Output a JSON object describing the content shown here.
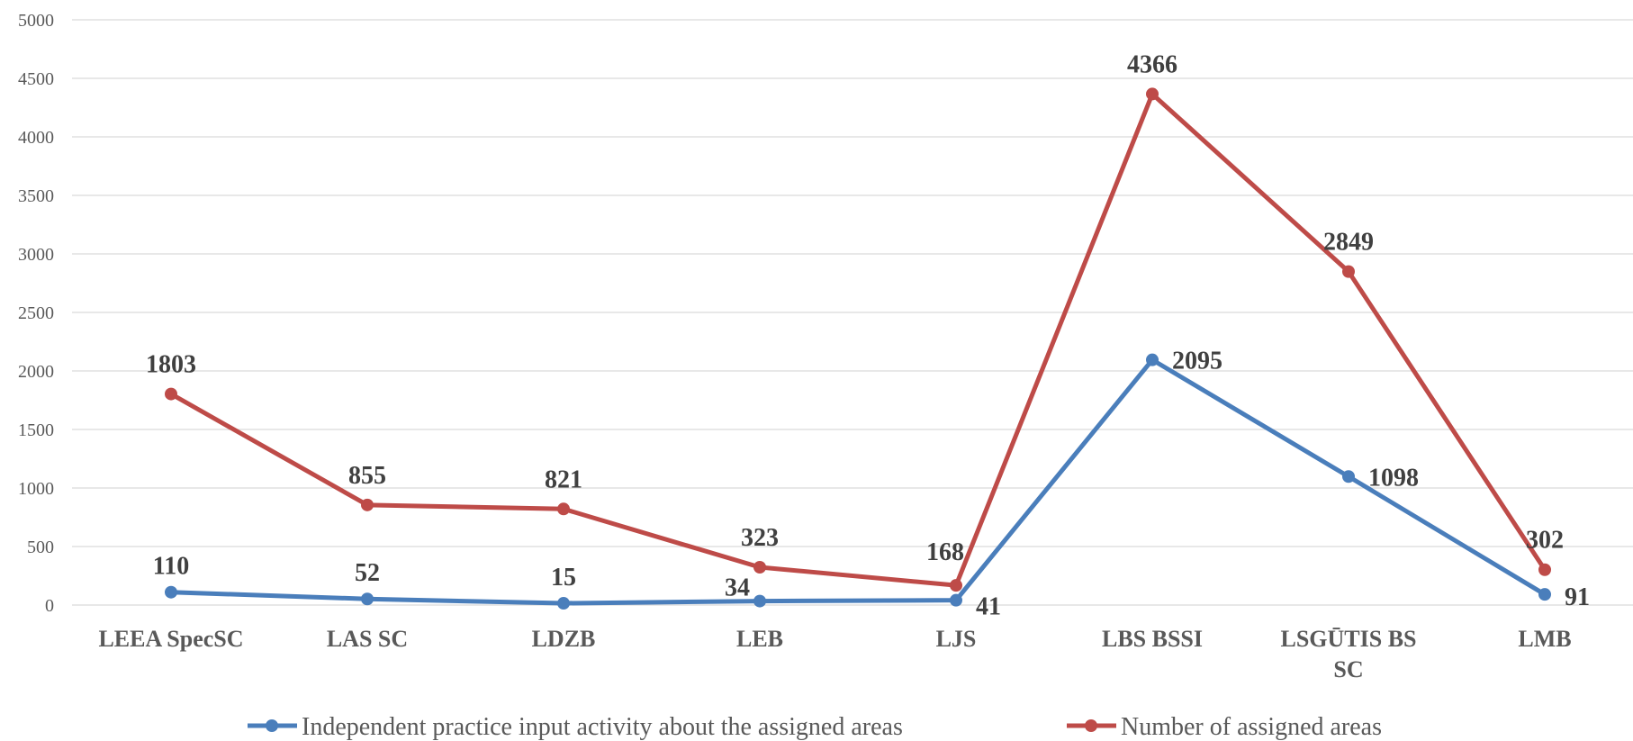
{
  "chart_data": {
    "type": "line",
    "categories": [
      [
        "LEEA SpecSC"
      ],
      [
        "LAS SC"
      ],
      [
        "LDZB"
      ],
      [
        "LEB"
      ],
      [
        "LJS"
      ],
      [
        "LBS BSSI"
      ],
      [
        "LSGŪTIS BS",
        "SC"
      ],
      [
        "LMB"
      ]
    ],
    "series": [
      {
        "name": "Independent practice input activity about the assigned areas",
        "color": "#4a7ebb",
        "values": [
          110,
          52,
          15,
          34,
          41,
          2095,
          1098,
          91
        ],
        "labels": [
          "110",
          "52",
          "15",
          "34",
          "41",
          "2095",
          "1098",
          "91"
        ]
      },
      {
        "name": "Number of assigned areas",
        "color": "#be4b48",
        "values": [
          1803,
          855,
          821,
          323,
          168,
          4366,
          2849,
          302
        ],
        "labels": [
          "1803",
          "855",
          "821",
          "323",
          "168",
          "4366",
          "2849",
          "302"
        ]
      }
    ],
    "ylim": [
      0,
      5000
    ],
    "yticks": [
      0,
      500,
      1000,
      1500,
      2000,
      2500,
      3000,
      3500,
      4000,
      4500,
      5000
    ],
    "grid": true,
    "legend_position": "bottom"
  }
}
